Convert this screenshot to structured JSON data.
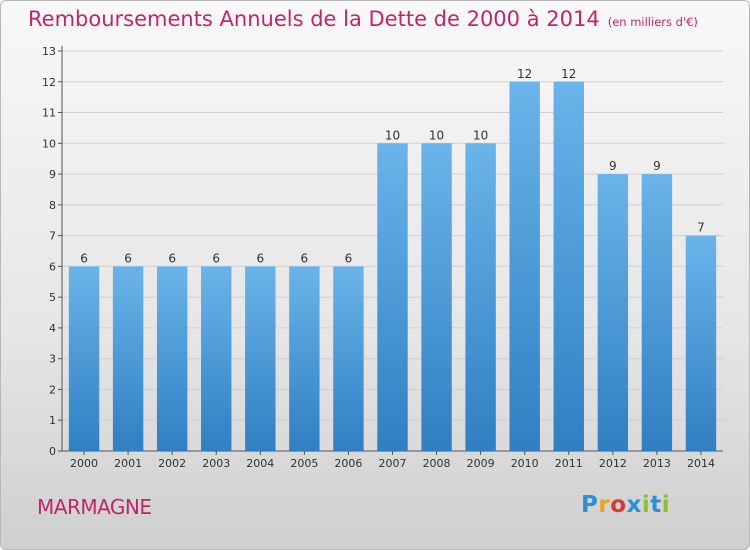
{
  "title": "Remboursements Annuels de la Dette de 2000 à 2014",
  "unit": "(en milliers d'€)",
  "commune": "MARMAGNE",
  "logo": {
    "text": "Proxiti",
    "letters": [
      "P",
      "r",
      "o",
      "x",
      "i",
      "t",
      "i"
    ],
    "letter_colors": [
      "#2a8fd6",
      "#f0a020",
      "#d43c2c",
      "#2a8fd6",
      "#8cc030",
      "#2a8fd6",
      "#8cc030"
    ]
  },
  "colors": {
    "title": "#c0266e",
    "bar_light": "#6ab4ea",
    "bar_dark": "#2f7fc2",
    "axis": "#555555",
    "grid": "#cfcfcf"
  },
  "chart_data": {
    "type": "bar",
    "categories": [
      "2000",
      "2001",
      "2002",
      "2003",
      "2004",
      "2005",
      "2006",
      "2007",
      "2008",
      "2009",
      "2010",
      "2011",
      "2012",
      "2013",
      "2014"
    ],
    "values": [
      6,
      6,
      6,
      6,
      6,
      6,
      6,
      10,
      10,
      10,
      12,
      12,
      9,
      9,
      7
    ],
    "ylim": [
      0,
      13
    ],
    "yticks": [
      0,
      1,
      2,
      3,
      4,
      5,
      6,
      7,
      8,
      9,
      10,
      11,
      12,
      13
    ],
    "grid": true,
    "data_labels": true
  }
}
